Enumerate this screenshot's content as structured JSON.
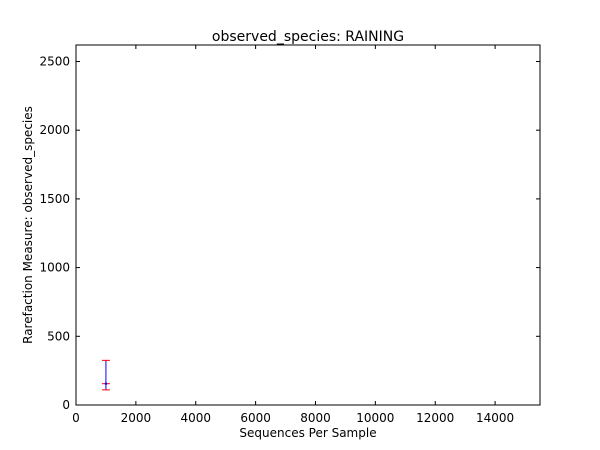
{
  "chart_data": {
    "type": "line",
    "title": "observed_species: RAINING",
    "xlabel": "Sequences Per Sample",
    "ylabel": "Rarefaction Measure: observed_species",
    "xlim": [
      0,
      15500
    ],
    "ylim": [
      0,
      2620
    ],
    "x_ticks": [
      0,
      2000,
      4000,
      6000,
      8000,
      10000,
      12000,
      14000
    ],
    "y_ticks": [
      0,
      500,
      1000,
      1500,
      2000,
      2500
    ],
    "x_tick_labels": [
      "0",
      "2000",
      "4000",
      "6000",
      "8000",
      "10000",
      "12000",
      "14000"
    ],
    "y_tick_labels": [
      "0",
      "500",
      "1000",
      "1500",
      "2000",
      "2500"
    ],
    "grid": false,
    "legend": "none",
    "series": [
      {
        "color": "#0000ff",
        "errorbar_color": "#ff0000",
        "points": [
          {
            "x": 1000,
            "y": 155,
            "ymin": 110,
            "ymax": 325
          }
        ]
      }
    ]
  }
}
